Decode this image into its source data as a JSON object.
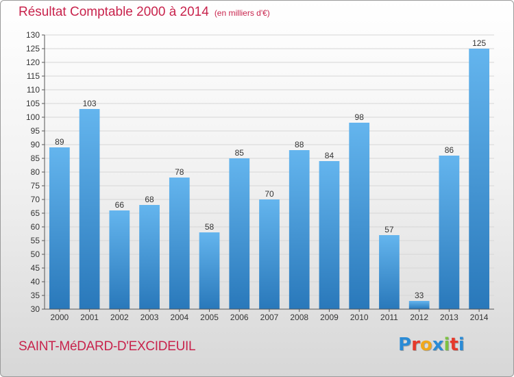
{
  "header": {
    "title": "Résultat Comptable 2000 à 2014",
    "unit": "(en milliers d'€)"
  },
  "footer": {
    "commune": "SAINT-MéDARD-D'EXCIDEUIL",
    "logo_text": "Proxiti",
    "logo_colors": [
      "#2a8bd6",
      "#e6392a",
      "#f0a81c",
      "#2a8bd6",
      "#7cc142",
      "#e6392a",
      "#2a8bd6"
    ]
  },
  "colors": {
    "bar_light": "#5fb1ec",
    "bar_dark": "#2a7fc0",
    "title": "#c8234c",
    "grid": "#d6d6d6"
  },
  "chart_data": {
    "type": "bar",
    "categories": [
      "2000",
      "2001",
      "2002",
      "2003",
      "2004",
      "2005",
      "2006",
      "2007",
      "2008",
      "2009",
      "2010",
      "2011",
      "2012",
      "2013",
      "2014"
    ],
    "values": [
      89,
      103,
      66,
      68,
      78,
      58,
      85,
      70,
      88,
      84,
      98,
      57,
      33,
      86,
      125
    ],
    "ylim": [
      30,
      130
    ],
    "ytick_step": 5,
    "grid": true
  }
}
